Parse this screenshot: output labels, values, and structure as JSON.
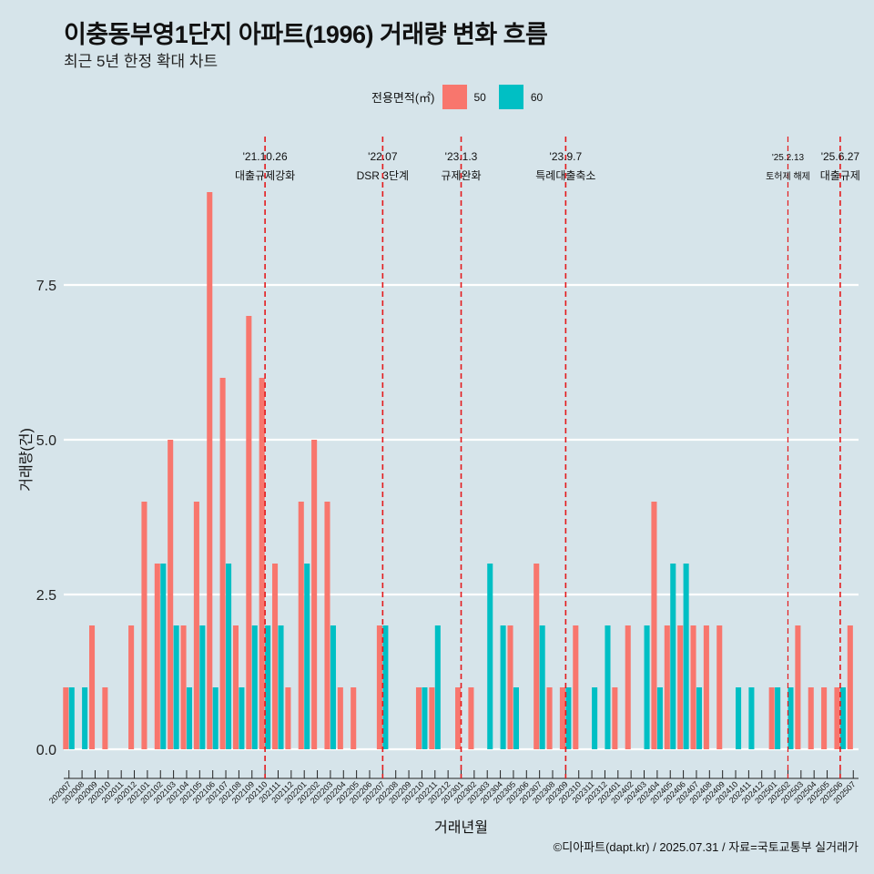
{
  "title": "이충동부영1단지 아파트(1996) 거래량 변화 흐름",
  "subtitle": "최근 5년 한정 확대 차트",
  "caption": "©디아파트(dapt.kr) / 2025.07.31 / 자료=국토교통부 실거래가",
  "legend": {
    "title": "전용면적(㎡)",
    "items": [
      {
        "label": "50",
        "color": "#f8766d"
      },
      {
        "label": "60",
        "color": "#00bfc4"
      }
    ]
  },
  "chart_data": {
    "type": "bar",
    "title": "이충동부영1단지 아파트(1996) 거래량 변화 흐름",
    "xlabel": "거래년월",
    "ylabel": "거래량(건)",
    "ylim": [
      0,
      9.5
    ],
    "yticks": [
      "0.0",
      "2.5",
      "5.0",
      "7.5"
    ],
    "categories": [
      "202007",
      "202008",
      "202009",
      "202010",
      "202011",
      "202012",
      "202101",
      "202102",
      "202103",
      "202104",
      "202105",
      "202106",
      "202107",
      "202108",
      "202109",
      "202110",
      "202111",
      "202112",
      "202201",
      "202202",
      "202203",
      "202204",
      "202205",
      "202206",
      "202207",
      "202208",
      "202209",
      "202210",
      "202211",
      "202212",
      "202301",
      "202302",
      "202303",
      "202304",
      "202305",
      "202306",
      "202307",
      "202308",
      "202309",
      "202310",
      "202311",
      "202312",
      "202401",
      "202402",
      "202403",
      "202404",
      "202405",
      "202406",
      "202407",
      "202408",
      "202409",
      "202410",
      "202411",
      "202412",
      "202501",
      "202502",
      "202503",
      "202504",
      "202505",
      "202506",
      "202507"
    ],
    "series": [
      {
        "name": "50",
        "color": "#f8766d",
        "values": [
          1,
          0,
          2,
          1,
          0,
          2,
          4,
          3,
          5,
          2,
          4,
          9,
          6,
          2,
          7,
          6,
          3,
          1,
          4,
          5,
          4,
          1,
          1,
          0,
          2,
          0,
          0,
          1,
          1,
          0,
          1,
          1,
          0,
          0,
          2,
          0,
          3,
          1,
          1,
          2,
          0,
          0,
          1,
          2,
          0,
          4,
          2,
          2,
          2,
          2,
          2,
          0,
          0,
          0,
          1,
          0,
          2,
          1,
          1,
          1,
          2
        ]
      },
      {
        "name": "60",
        "color": "#00bfc4",
        "values": [
          1,
          1,
          0,
          0,
          0,
          0,
          0,
          3,
          2,
          1,
          2,
          1,
          3,
          1,
          2,
          2,
          2,
          0,
          3,
          0,
          2,
          0,
          0,
          0,
          2,
          0,
          0,
          1,
          2,
          0,
          0,
          0,
          3,
          2,
          1,
          0,
          2,
          0,
          1,
          0,
          1,
          2,
          0,
          0,
          2,
          1,
          3,
          3,
          1,
          0,
          0,
          1,
          1,
          0,
          1,
          1,
          0,
          0,
          0,
          1,
          0
        ]
      }
    ],
    "events": [
      {
        "date": "'21.10.26",
        "label": "대출규제강화",
        "month": "202110"
      },
      {
        "date": "'22.07",
        "label": "DSR 3단계",
        "month": "202207"
      },
      {
        "date": "'23.1.3",
        "label": "규제완화",
        "month": "202301"
      },
      {
        "date": "'23.9.7",
        "label": "특례대출축소",
        "month": "202309"
      },
      {
        "date": "'25.2.13",
        "label": "토허제 해제",
        "month": "202502"
      },
      {
        "date": "'25.6.27",
        "label": "대출규제",
        "month": "202506"
      }
    ]
  }
}
